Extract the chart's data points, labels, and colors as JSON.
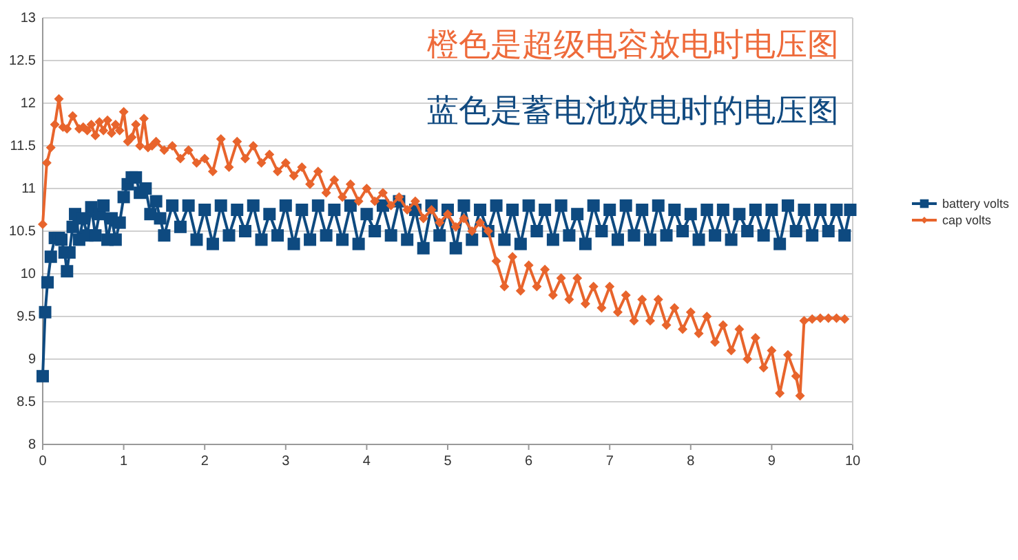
{
  "chart_data": {
    "type": "line",
    "title": "橙色是超级电容放电时电压图",
    "subtitle": "蓝色是蓄电池放电时的电压图",
    "xlim": [
      0,
      10
    ],
    "xticks": [
      0,
      1,
      2,
      3,
      4,
      5,
      6,
      7,
      8,
      9,
      10
    ],
    "ylim": [
      8,
      13
    ],
    "yticks": [
      8,
      8.5,
      9,
      9.5,
      10,
      10.5,
      11,
      11.5,
      12,
      12.5,
      13
    ],
    "grid": "y",
    "legend": "right",
    "line_style": "solid",
    "series": [
      {
        "name": "battery volts",
        "color": "#0e4a80",
        "marker": "square",
        "x": [
          0,
          0.03,
          0.06,
          0.1,
          0.15,
          0.2,
          0.23,
          0.27,
          0.3,
          0.33,
          0.37,
          0.4,
          0.45,
          0.5,
          0.55,
          0.6,
          0.65,
          0.7,
          0.75,
          0.8,
          0.85,
          0.9,
          0.95,
          1.0,
          1.05,
          1.1,
          1.15,
          1.2,
          1.27,
          1.33,
          1.4,
          1.45,
          1.5,
          1.6,
          1.7,
          1.8,
          1.9,
          2.0,
          2.1,
          2.2,
          2.3,
          2.4,
          2.5,
          2.6,
          2.7,
          2.8,
          2.9,
          3.0,
          3.1,
          3.2,
          3.3,
          3.4,
          3.5,
          3.6,
          3.7,
          3.8,
          3.9,
          4.0,
          4.1,
          4.2,
          4.3,
          4.4,
          4.5,
          4.6,
          4.7,
          4.8,
          4.9,
          5.0,
          5.1,
          5.2,
          5.3,
          5.4,
          5.5,
          5.6,
          5.7,
          5.8,
          5.9,
          6.0,
          6.1,
          6.2,
          6.3,
          6.4,
          6.5,
          6.6,
          6.7,
          6.8,
          6.9,
          7.0,
          7.1,
          7.2,
          7.3,
          7.4,
          7.5,
          7.6,
          7.7,
          7.8,
          7.9,
          8.0,
          8.1,
          8.2,
          8.3,
          8.4,
          8.5,
          8.6,
          8.7,
          8.8,
          8.9,
          9.0,
          9.1,
          9.2,
          9.3,
          9.4,
          9.5,
          9.6,
          9.7,
          9.8,
          9.9,
          9.97
        ],
        "values": [
          8.8,
          9.55,
          9.9,
          10.2,
          10.42,
          10.42,
          10.4,
          10.25,
          10.03,
          10.25,
          10.55,
          10.7,
          10.4,
          10.65,
          10.45,
          10.78,
          10.45,
          10.7,
          10.8,
          10.4,
          10.65,
          10.4,
          10.6,
          10.9,
          11.05,
          11.13,
          11.13,
          10.95,
          11.0,
          10.7,
          10.85,
          10.65,
          10.45,
          10.8,
          10.55,
          10.8,
          10.4,
          10.75,
          10.35,
          10.8,
          10.45,
          10.75,
          10.5,
          10.8,
          10.4,
          10.7,
          10.45,
          10.8,
          10.35,
          10.75,
          10.4,
          10.8,
          10.45,
          10.75,
          10.4,
          10.8,
          10.35,
          10.7,
          10.5,
          10.8,
          10.45,
          10.85,
          10.4,
          10.75,
          10.3,
          10.8,
          10.45,
          10.75,
          10.3,
          10.8,
          10.4,
          10.75,
          10.5,
          10.8,
          10.4,
          10.75,
          10.35,
          10.8,
          10.5,
          10.75,
          10.4,
          10.8,
          10.45,
          10.7,
          10.35,
          10.8,
          10.5,
          10.75,
          10.4,
          10.8,
          10.45,
          10.75,
          10.4,
          10.8,
          10.45,
          10.75,
          10.5,
          10.7,
          10.4,
          10.75,
          10.45,
          10.75,
          10.4,
          10.7,
          10.5,
          10.75,
          10.45,
          10.75,
          10.35,
          10.8,
          10.5,
          10.75,
          10.45,
          10.75,
          10.5,
          10.75,
          10.45,
          10.75
        ]
      },
      {
        "name": "cap volts",
        "color": "#e8642c",
        "marker": "diamond",
        "x": [
          0,
          0.05,
          0.1,
          0.15,
          0.2,
          0.25,
          0.3,
          0.37,
          0.45,
          0.5,
          0.55,
          0.6,
          0.65,
          0.7,
          0.75,
          0.8,
          0.85,
          0.9,
          0.95,
          1.0,
          1.05,
          1.1,
          1.15,
          1.2,
          1.25,
          1.3,
          1.35,
          1.4,
          1.5,
          1.6,
          1.7,
          1.8,
          1.9,
          2.0,
          2.1,
          2.2,
          2.3,
          2.4,
          2.5,
          2.6,
          2.7,
          2.8,
          2.9,
          3.0,
          3.1,
          3.2,
          3.3,
          3.4,
          3.5,
          3.6,
          3.7,
          3.8,
          3.9,
          4.0,
          4.1,
          4.2,
          4.3,
          4.4,
          4.5,
          4.6,
          4.7,
          4.8,
          4.9,
          5.0,
          5.1,
          5.2,
          5.3,
          5.4,
          5.5,
          5.6,
          5.7,
          5.8,
          5.9,
          6.0,
          6.1,
          6.2,
          6.3,
          6.4,
          6.5,
          6.6,
          6.7,
          6.8,
          6.9,
          7.0,
          7.1,
          7.2,
          7.3,
          7.4,
          7.5,
          7.6,
          7.7,
          7.8,
          7.9,
          8.0,
          8.1,
          8.2,
          8.3,
          8.4,
          8.5,
          8.6,
          8.7,
          8.8,
          8.9,
          9.0,
          9.1,
          9.2,
          9.3,
          9.35,
          9.4,
          9.5,
          9.6,
          9.7,
          9.8,
          9.9
        ],
        "values": [
          10.58,
          11.3,
          11.48,
          11.75,
          12.05,
          11.72,
          11.7,
          11.85,
          11.7,
          11.72,
          11.68,
          11.75,
          11.62,
          11.78,
          11.68,
          11.8,
          11.65,
          11.75,
          11.68,
          11.9,
          11.55,
          11.6,
          11.75,
          11.5,
          11.82,
          11.48,
          11.5,
          11.55,
          11.45,
          11.5,
          11.35,
          11.45,
          11.3,
          11.35,
          11.2,
          11.58,
          11.25,
          11.55,
          11.35,
          11.5,
          11.3,
          11.4,
          11.2,
          11.3,
          11.15,
          11.25,
          11.05,
          11.2,
          10.95,
          11.1,
          10.9,
          11.05,
          10.85,
          11.0,
          10.85,
          10.95,
          10.8,
          10.9,
          10.75,
          10.85,
          10.65,
          10.75,
          10.6,
          10.7,
          10.55,
          10.65,
          10.5,
          10.6,
          10.5,
          10.15,
          9.85,
          10.2,
          9.8,
          10.1,
          9.85,
          10.05,
          9.75,
          9.95,
          9.7,
          9.95,
          9.65,
          9.85,
          9.6,
          9.85,
          9.55,
          9.75,
          9.45,
          9.7,
          9.45,
          9.7,
          9.4,
          9.6,
          9.35,
          9.55,
          9.3,
          9.5,
          9.2,
          9.4,
          9.1,
          9.35,
          9.0,
          9.25,
          8.9,
          9.1,
          8.6,
          9.05,
          8.8,
          8.57,
          9.45,
          9.47,
          9.48,
          9.48,
          9.48,
          9.47
        ]
      }
    ]
  }
}
